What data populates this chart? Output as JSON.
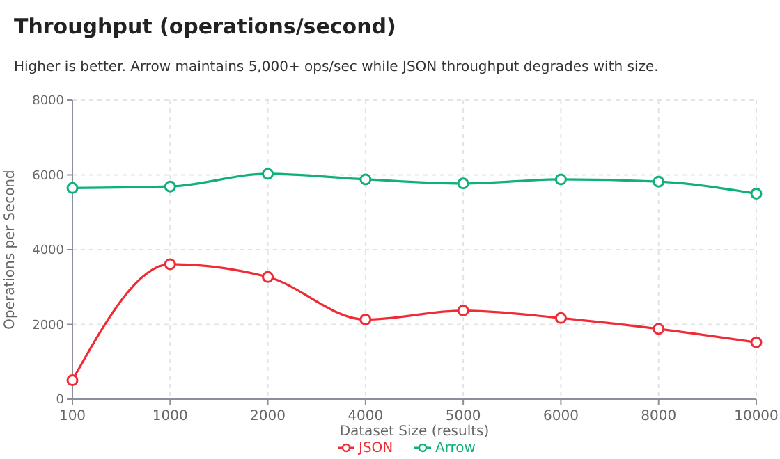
{
  "chart_data": {
    "type": "line",
    "title": "Throughput (operations/second)",
    "subtitle": "Higher is better. Arrow maintains 5,000+ ops/sec while JSON throughput degrades with size.",
    "xlabel": "Dataset Size (results)",
    "ylabel": "Operations per Second",
    "categories": [
      "100",
      "1000",
      "2000",
      "4000",
      "5000",
      "6000",
      "8000",
      "10000"
    ],
    "series": [
      {
        "name": "JSON",
        "color": "#ef2b36",
        "values": [
          510,
          3610,
          3270,
          2130,
          2370,
          2170,
          1880,
          1520
        ]
      },
      {
        "name": "Arrow",
        "color": "#10b07a",
        "values": [
          5650,
          5690,
          6030,
          5880,
          5770,
          5880,
          5820,
          5500
        ]
      }
    ],
    "ylim": [
      0,
      8000
    ],
    "yticks": [
      0,
      2000,
      4000,
      6000,
      8000
    ],
    "grid": true,
    "legend": "bottom",
    "marker": "circle",
    "line_style": "solid"
  }
}
